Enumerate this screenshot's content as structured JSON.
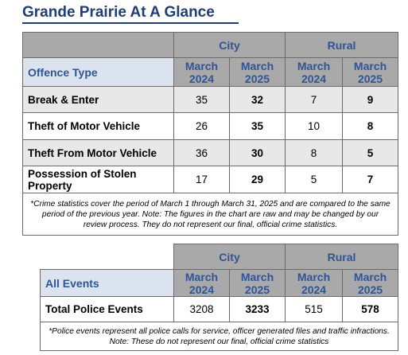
{
  "header": {
    "title": "Grande Prairie At A Glance"
  },
  "offence_table": {
    "groups": [
      "City",
      "Rural"
    ],
    "column_label": "Offence Type",
    "periods": [
      "March 2024",
      "March 2025",
      "March 2024",
      "March 2025"
    ],
    "rows": [
      [
        "Break & Enter",
        35,
        32,
        7,
        9
      ],
      [
        "Theft of Motor Vehicle",
        26,
        35,
        10,
        8
      ],
      [
        "Theft From Motor Vehicle",
        36,
        30,
        8,
        5
      ],
      [
        "Possession of Stolen Property",
        17,
        29,
        5,
        7
      ]
    ],
    "note": "*Crime statistics cover the period of March 1 through March 31, 2025 and are compared to the same period of the previous year.  Note: The figures in the chart are raw and may be changed by our review process.  They do not represent our final, official crime statistics."
  },
  "events_table": {
    "groups": [
      "City",
      "Rural"
    ],
    "column_label": "All Events",
    "periods": [
      "March 2024",
      "March 2025",
      "March 2024",
      "March 2025"
    ],
    "rows": [
      [
        "Total Police Events",
        3208,
        3233,
        515,
        578
      ]
    ],
    "note": "*Police events represent all police calls for service, officer generated files and traffic infractions.  Note: These do not represent our final, official crime statistics"
  }
}
